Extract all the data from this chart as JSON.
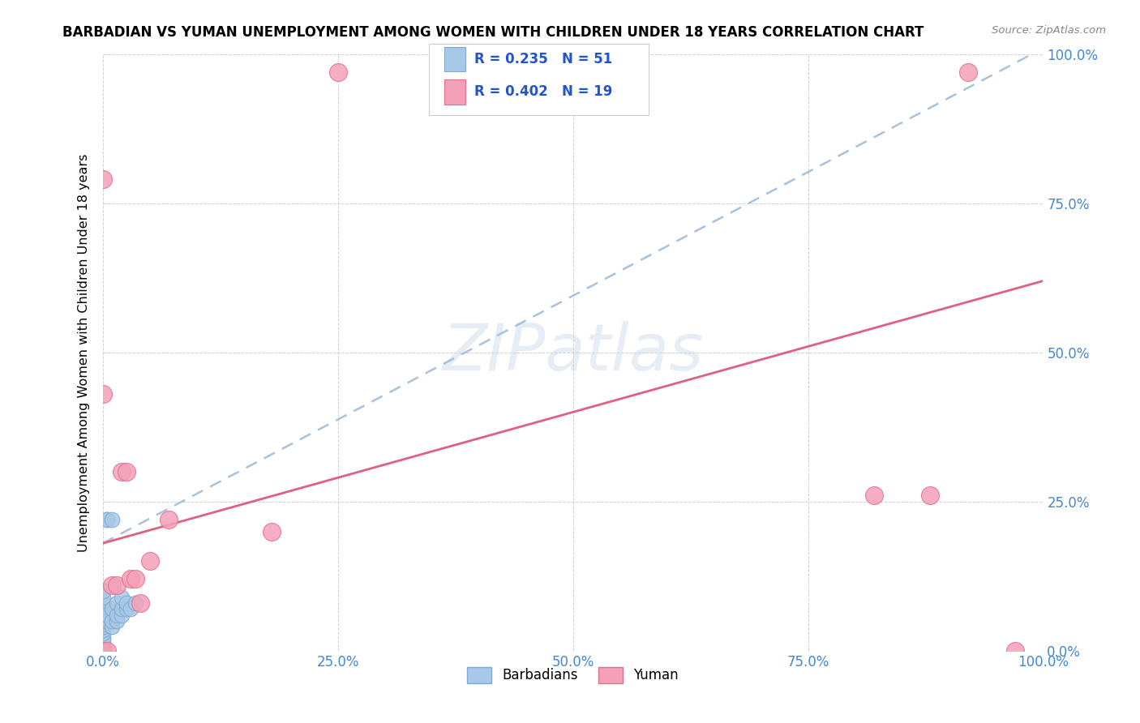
{
  "title": "BARBADIAN VS YUMAN UNEMPLOYMENT AMONG WOMEN WITH CHILDREN UNDER 18 YEARS CORRELATION CHART",
  "source": "Source: ZipAtlas.com",
  "ylabel": "Unemployment Among Women with Children Under 18 years",
  "xlim": [
    0,
    1
  ],
  "ylim": [
    0,
    1
  ],
  "xticks": [
    0.0,
    0.25,
    0.5,
    0.75,
    1.0
  ],
  "yticks": [
    0.0,
    0.25,
    0.5,
    0.75,
    1.0
  ],
  "xticklabels": [
    "0.0%",
    "25.0%",
    "50.0%",
    "75.0%",
    "100.0%"
  ],
  "yticklabels": [
    "0.0%",
    "25.0%",
    "50.0%",
    "75.0%",
    "100.0%"
  ],
  "barbadian_color": "#a8c8e8",
  "yuman_color": "#f4a0b8",
  "barbadian_edge": "#80aad0",
  "yuman_edge": "#e07090",
  "trendline_blue_color": "#a0bcd8",
  "trendline_pink_color": "#e06080",
  "legend_R_barbadian": "0.235",
  "legend_N_barbadian": "51",
  "legend_R_yuman": "0.402",
  "legend_N_yuman": "19",
  "watermark": "ZIPatlas",
  "blue_trend_x0": 0.0,
  "blue_trend_y0": 0.18,
  "blue_trend_x1": 1.0,
  "blue_trend_y1": 1.01,
  "pink_trend_x0": 0.0,
  "pink_trend_y0": 0.18,
  "pink_trend_x1": 1.0,
  "pink_trend_y1": 0.62,
  "barbadian_points_x": [
    0.0,
    0.0,
    0.0,
    0.0,
    0.0,
    0.0,
    0.0,
    0.0,
    0.0,
    0.0,
    0.0,
    0.0,
    0.0,
    0.0,
    0.0,
    0.0,
    0.0,
    0.0,
    0.0,
    0.0,
    0.0,
    0.0,
    0.0,
    0.0,
    0.0,
    0.0,
    0.0,
    0.0,
    0.0,
    0.0,
    0.0,
    0.0,
    0.0,
    0.005,
    0.005,
    0.01,
    0.01,
    0.01,
    0.015,
    0.015,
    0.015,
    0.02,
    0.02,
    0.02,
    0.025,
    0.025,
    0.03,
    0.035,
    0.005,
    0.005,
    0.01
  ],
  "barbadian_points_y": [
    0.0,
    0.0,
    0.0,
    0.0,
    0.0,
    0.0,
    0.0,
    0.0,
    0.0,
    0.0,
    0.0,
    0.0,
    0.0,
    0.0,
    0.0,
    0.0,
    0.005,
    0.005,
    0.01,
    0.01,
    0.02,
    0.02,
    0.03,
    0.035,
    0.04,
    0.045,
    0.05,
    0.055,
    0.06,
    0.07,
    0.08,
    0.09,
    0.1,
    0.05,
    0.06,
    0.04,
    0.05,
    0.07,
    0.05,
    0.06,
    0.08,
    0.06,
    0.07,
    0.09,
    0.07,
    0.08,
    0.07,
    0.08,
    0.22,
    0.22,
    0.22
  ],
  "yuman_points_x": [
    0.0,
    0.0,
    0.0,
    0.005,
    0.01,
    0.015,
    0.02,
    0.025,
    0.03,
    0.035,
    0.04,
    0.05,
    0.07,
    0.25,
    0.82,
    0.88,
    0.92,
    0.97,
    0.18
  ],
  "yuman_points_y": [
    0.0,
    0.79,
    0.43,
    0.0,
    0.11,
    0.11,
    0.3,
    0.3,
    0.12,
    0.12,
    0.08,
    0.15,
    0.22,
    0.97,
    0.26,
    0.26,
    0.97,
    0.0,
    0.2
  ]
}
